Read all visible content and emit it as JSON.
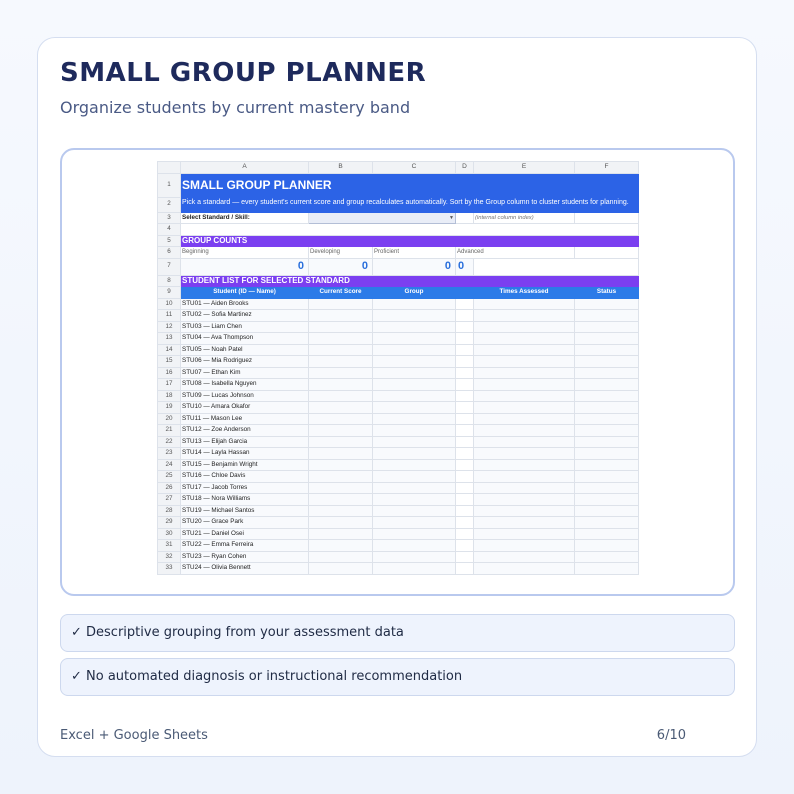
{
  "header": {
    "title": "SMALL GROUP PLANNER",
    "subtitle": "Organize students by current mastery band"
  },
  "sheet": {
    "columns": [
      "A",
      "B",
      "C",
      "D",
      "E",
      "F"
    ],
    "banner_title": "SMALL GROUP PLANNER",
    "banner_subtitle": "Pick a standard — every student's current score and group recalculates automatically. Sort by the Group column to cluster students for planning.",
    "select_label": "Select Standard / Skill:",
    "select_value": "",
    "internal_note": "(internal column index)",
    "group_counts_title": "GROUP COUNTS",
    "groups": [
      {
        "label": "Beginning",
        "count": "0"
      },
      {
        "label": "Developing",
        "count": "0"
      },
      {
        "label": "Proficient",
        "count": "0"
      },
      {
        "label": "Advanced",
        "count": "0"
      }
    ],
    "student_list_title": "STUDENT LIST FOR SELECTED STANDARD",
    "table_headers": [
      "Student (ID — Name)",
      "Current Score",
      "Group",
      "",
      "Times Assessed",
      "Status"
    ],
    "students": [
      "STU01 — Aiden Brooks",
      "STU02 — Sofia Martinez",
      "STU03 — Liam Chen",
      "STU04 — Ava Thompson",
      "STU05 — Noah Patel",
      "STU06 — Mia Rodriguez",
      "STU07 — Ethan Kim",
      "STU08 — Isabella Nguyen",
      "STU09 — Lucas Johnson",
      "STU10 — Amara Okafor",
      "STU11 — Mason Lee",
      "STU12 — Zoe Anderson",
      "STU13 — Elijah Garcia",
      "STU14 — Layla Hassan",
      "STU15 — Benjamin Wright",
      "STU16 — Chloe Davis",
      "STU17 — Jacob Torres",
      "STU18 — Nora Williams",
      "STU19 — Michael Santos",
      "STU20 — Grace Park",
      "STU21 — Daniel Osei",
      "STU22 — Emma Ferreira",
      "STU23 — Ryan Cohen",
      "STU24 — Olivia Bennett"
    ]
  },
  "features": [
    "✓ Descriptive grouping from your assessment data",
    "✓ No automated diagnosis or instructional recommendation"
  ],
  "footer": {
    "left": "Excel + Google Sheets",
    "right": "6/10"
  },
  "colors": {
    "banner": "#2c63e6",
    "section": "#7b3ff0",
    "table_header": "#2c7be8",
    "title": "#1e2a5c"
  }
}
